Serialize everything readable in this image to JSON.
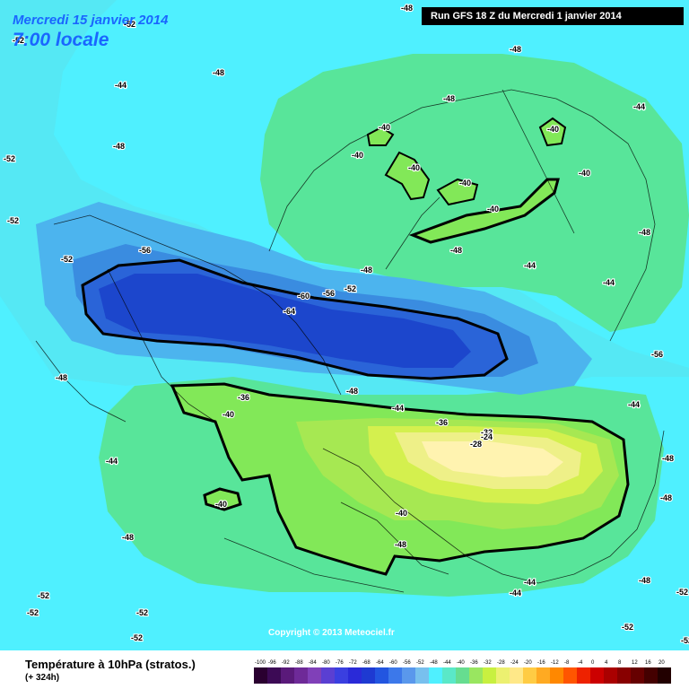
{
  "header": {
    "date": "Mercredi 15 janvier 2014",
    "time": "7:00 locale",
    "run": "Run GFS 18 Z du Mercredi 1 janvier 2014"
  },
  "copyright": "Copyright © 2013 Meteociel.fr",
  "footer": {
    "title": "Température à 10hPa (stratos.)",
    "subtitle": "(+ 324h)"
  },
  "legend": {
    "ticks": [
      "-100",
      "-96",
      "-92",
      "-88",
      "-84",
      "-80",
      "-76",
      "-72",
      "-68",
      "-64",
      "-60",
      "-56",
      "-52",
      "-48",
      "-44",
      "-40",
      "-36",
      "-32",
      "-28",
      "-24",
      "-20",
      "-16",
      "-12",
      "-8",
      "-4",
      "0",
      "4",
      "8",
      "12",
      "16",
      "20"
    ],
    "colors": [
      "#2a0030",
      "#3c0a55",
      "#5a1a7a",
      "#6e2a98",
      "#8040b8",
      "#5a3fd2",
      "#3a3fe0",
      "#2a2ad8",
      "#1e3ad2",
      "#2255e0",
      "#3c78ea",
      "#5a98ec",
      "#78c0ee",
      "#4ff0ff",
      "#5ae8c8",
      "#66dd90",
      "#99e660",
      "#c8f040",
      "#ecf070",
      "#ffe888",
      "#ffcc44",
      "#ffaa22",
      "#ff8800",
      "#ff5500",
      "#ee2200",
      "#cc0000",
      "#aa0000",
      "#880000",
      "#660000",
      "#440000",
      "#220000"
    ]
  },
  "colors": {
    "m52": "#55e8f4",
    "m48": "#4ff0ff",
    "m44": "#54e4b4",
    "m40": "#58e080",
    "m36": "#99e056",
    "m32": "#c6f04c",
    "m28": "#eef088",
    "m24": "#fff3b0",
    "m56": "#4cb4ee",
    "m60": "#3a8ce0",
    "m64": "#2a64d8",
    "m68": "#1c46cc"
  },
  "map_labels": [
    {
      "text": "-48"
    },
    {
      "text": "-52"
    },
    {
      "text": "-52"
    },
    {
      "text": "-48"
    },
    {
      "text": "-48"
    },
    {
      "text": "-44"
    },
    {
      "text": "-48"
    },
    {
      "text": "-48"
    },
    {
      "text": "-52"
    },
    {
      "text": "-52"
    },
    {
      "text": "-52"
    },
    {
      "text": "-56"
    },
    {
      "text": "-52"
    },
    {
      "text": "-60"
    },
    {
      "text": "-56"
    },
    {
      "text": "-52"
    },
    {
      "text": "-64"
    },
    {
      "text": "-48"
    },
    {
      "text": "-48"
    },
    {
      "text": "-40"
    },
    {
      "text": "-40"
    },
    {
      "text": "-40"
    },
    {
      "text": "-40"
    },
    {
      "text": "-40"
    },
    {
      "text": "-40"
    },
    {
      "text": "-40"
    },
    {
      "text": "-44"
    },
    {
      "text": "-44"
    },
    {
      "text": "-48"
    },
    {
      "text": "-44"
    },
    {
      "text": "-48"
    },
    {
      "text": "-56"
    },
    {
      "text": "-48"
    },
    {
      "text": "-44"
    },
    {
      "text": "-36"
    },
    {
      "text": "-40"
    },
    {
      "text": "-36"
    },
    {
      "text": "-32"
    },
    {
      "text": "-28"
    },
    {
      "text": "-24"
    },
    {
      "text": "-44"
    },
    {
      "text": "-40"
    },
    {
      "text": "-40"
    },
    {
      "text": "-48"
    },
    {
      "text": "-48"
    },
    {
      "text": "-52"
    },
    {
      "text": "-52"
    },
    {
      "text": "-52"
    },
    {
      "text": "-52"
    },
    {
      "text": "-44"
    },
    {
      "text": "-44"
    },
    {
      "text": "-48"
    },
    {
      "text": "-52"
    },
    {
      "text": "-52"
    },
    {
      "text": "-52"
    },
    {
      "text": "-48"
    },
    {
      "text": "-44"
    },
    {
      "text": "-48"
    }
  ]
}
